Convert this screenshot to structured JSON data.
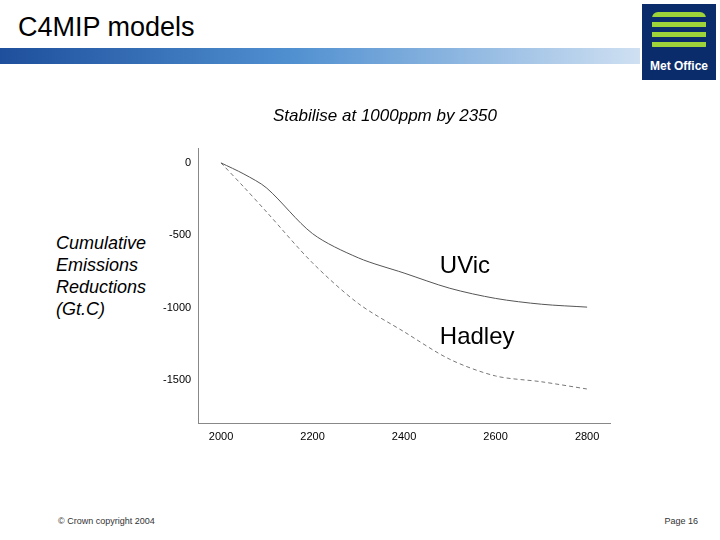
{
  "header": {
    "title": "C4MIP models",
    "logo": "Met Office"
  },
  "chart_data": {
    "type": "line",
    "title": "Stabilise at 1000ppm by 2350",
    "y_label": "Cumulative Emissions Reductions (Gt.C)",
    "x": [
      2000,
      2050,
      2100,
      2200,
      2300,
      2400,
      2500,
      2600,
      2700,
      2800
    ],
    "series": [
      {
        "name": "UVic",
        "color": "#555555",
        "line_style": "solid",
        "values": [
          0,
          -77,
          -174,
          -488,
          -655,
          -760,
          -865,
          -935,
          -975,
          -995
        ]
      },
      {
        "name": "Hadley",
        "color": "#777777",
        "line_style": "dashed",
        "values": [
          0,
          -167,
          -340,
          -690,
          -970,
          -1165,
          -1355,
          -1470,
          -1510,
          -1560
        ]
      }
    ],
    "xlim": [
      1950,
      2850
    ],
    "xticks": [
      2000,
      2200,
      2400,
      2600,
      2800
    ],
    "ylim": [
      -1800,
      100
    ],
    "yticks": [
      -1500,
      -1000,
      -500,
      0
    ],
    "grid": false
  },
  "footer": {
    "left": "© Crown copyright 2004",
    "right": "Page 16"
  }
}
